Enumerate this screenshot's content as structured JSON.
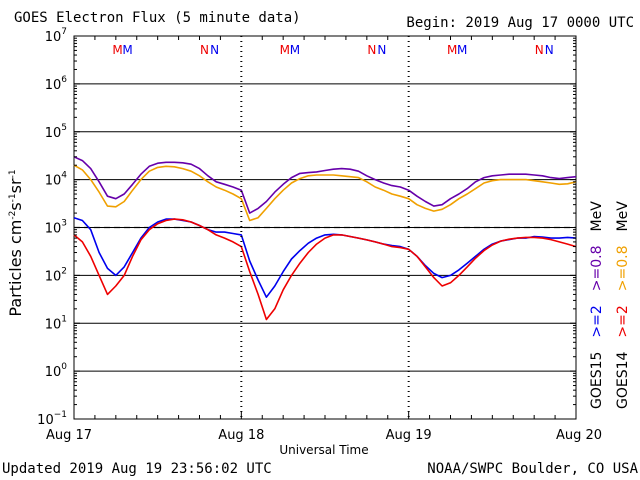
{
  "header": {
    "title": "GOES Electron Flux (5 minute data)",
    "begin": "Begin: 2019 Aug 17 0000 UTC"
  },
  "footer": {
    "updated": "Updated 2019 Aug 19 23:56:02 UTC",
    "source": "NOAA/SWPC Boulder, CO USA"
  },
  "colors": {
    "e2_goes15": "#0000ee",
    "e2_goes14": "#ee0000",
    "e08_goes15": "#6600aa",
    "e08_goes14": "#f0a000",
    "grid": "#000000"
  },
  "chart_data": {
    "type": "line",
    "title": "GOES Electron Flux (5 minute data)",
    "xlabel": "Universal Time",
    "ylabel": "Particles cm-2s-1sr-1",
    "yscale": "log",
    "ylim_exp": [
      -1,
      7
    ],
    "y_tick_exponents": [
      7,
      6,
      5,
      4,
      3,
      2,
      1,
      0,
      -1
    ],
    "x_unit": "day",
    "xlim": [
      0,
      3
    ],
    "x_tick_labels": [
      {
        "x": 0,
        "label": "Aug 17"
      },
      {
        "x": 1,
        "label": "Aug 18"
      },
      {
        "x": 2,
        "label": "Aug 19"
      },
      {
        "x": 3,
        "label": "Aug 20"
      }
    ],
    "threshold": {
      "value": 1000,
      "style": "dashed"
    },
    "noon_midnight_markers": [
      {
        "x": 0.26,
        "label": "M",
        "series": "GOES14"
      },
      {
        "x": 0.32,
        "label": "M",
        "series": "GOES15"
      },
      {
        "x": 0.78,
        "label": "N",
        "series": "GOES14"
      },
      {
        "x": 0.84,
        "label": "N",
        "series": "GOES15"
      },
      {
        "x": 1.26,
        "label": "M",
        "series": "GOES14"
      },
      {
        "x": 1.32,
        "label": "M",
        "series": "GOES15"
      },
      {
        "x": 1.78,
        "label": "N",
        "series": "GOES14"
      },
      {
        "x": 1.84,
        "label": "N",
        "series": "GOES15"
      },
      {
        "x": 2.26,
        "label": "M",
        "series": "GOES14"
      },
      {
        "x": 2.32,
        "label": "M",
        "series": "GOES15"
      },
      {
        "x": 2.78,
        "label": "N",
        "series": "GOES14"
      },
      {
        "x": 2.84,
        "label": "N",
        "series": "GOES15"
      }
    ],
    "right_labels": [
      {
        "text": "GOES15",
        "color": "#000000"
      },
      {
        "text": ">=2",
        "color": "#0000ee"
      },
      {
        "text": ">=0.8",
        "color": "#6600aa"
      },
      {
        "text": "MeV",
        "color": "#000000"
      },
      {
        "text": "GOES14",
        "color": "#000000"
      },
      {
        "text": ">=2",
        "color": "#ee0000"
      },
      {
        "text": ">=0.8",
        "color": "#f0a000"
      },
      {
        "text": "MeV",
        "color": "#000000"
      }
    ],
    "series": [
      {
        "color": "#6600aa",
        "x": [
          0,
          0.05,
          0.1,
          0.15,
          0.2,
          0.25,
          0.3,
          0.35,
          0.4,
          0.45,
          0.5,
          0.55,
          0.6,
          0.65,
          0.7,
          0.75,
          0.8,
          0.85,
          0.9,
          0.95,
          1.0,
          1.05,
          1.1,
          1.15,
          1.2,
          1.25,
          1.3,
          1.35,
          1.4,
          1.45,
          1.5,
          1.55,
          1.6,
          1.65,
          1.7,
          1.75,
          1.8,
          1.85,
          1.9,
          1.95,
          2.0,
          2.05,
          2.1,
          2.15,
          2.2,
          2.25,
          2.3,
          2.35,
          2.4,
          2.45,
          2.5,
          2.55,
          2.6,
          2.65,
          2.7,
          2.75,
          2.8,
          2.85,
          2.9,
          2.95,
          3.0
        ],
        "values": [
          30000,
          25000,
          17000,
          9000,
          4500,
          4000,
          5000,
          8000,
          13000,
          19000,
          22000,
          23000,
          23000,
          22500,
          21000,
          17000,
          12000,
          9000,
          8000,
          7000,
          6000,
          2000,
          2500,
          3500,
          5500,
          8000,
          11000,
          13500,
          14000,
          14500,
          15500,
          16500,
          17000,
          16500,
          15000,
          12000,
          10000,
          8500,
          7500,
          7000,
          6000,
          4500,
          3500,
          2800,
          3000,
          4000,
          5000,
          6500,
          9000,
          11000,
          12000,
          12500,
          13000,
          13000,
          13000,
          12500,
          12000,
          11000,
          10500,
          11000,
          11500
        ]
      },
      {
        "color": "#f0a000",
        "x": [
          0,
          0.05,
          0.1,
          0.15,
          0.2,
          0.25,
          0.3,
          0.35,
          0.4,
          0.45,
          0.5,
          0.55,
          0.6,
          0.65,
          0.7,
          0.75,
          0.8,
          0.85,
          0.9,
          0.95,
          1.0,
          1.05,
          1.1,
          1.15,
          1.2,
          1.25,
          1.3,
          1.35,
          1.4,
          1.45,
          1.5,
          1.55,
          1.6,
          1.65,
          1.7,
          1.75,
          1.8,
          1.85,
          1.9,
          1.95,
          2.0,
          2.05,
          2.1,
          2.15,
          2.2,
          2.25,
          2.3,
          2.35,
          2.4,
          2.45,
          2.5,
          2.55,
          2.6,
          2.65,
          2.7,
          2.75,
          2.8,
          2.85,
          2.9,
          2.95,
          3.0
        ],
        "values": [
          20000,
          16000,
          10000,
          5500,
          2800,
          2700,
          3500,
          6000,
          10000,
          15000,
          18000,
          19000,
          18500,
          17000,
          15000,
          12000,
          9000,
          7000,
          6000,
          5000,
          4000,
          1400,
          1600,
          2500,
          4000,
          6000,
          8500,
          10500,
          12000,
          12500,
          12500,
          12500,
          12000,
          11500,
          11000,
          9000,
          7000,
          6000,
          5000,
          4500,
          4000,
          3000,
          2500,
          2200,
          2400,
          3000,
          4000,
          5000,
          6500,
          8500,
          9500,
          10000,
          10000,
          10000,
          10000,
          9500,
          9000,
          8500,
          8000,
          8200,
          9000
        ]
      },
      {
        "color": "#0000ee",
        "x": [
          0,
          0.05,
          0.1,
          0.15,
          0.2,
          0.25,
          0.3,
          0.35,
          0.4,
          0.45,
          0.5,
          0.55,
          0.6,
          0.65,
          0.7,
          0.75,
          0.8,
          0.85,
          0.9,
          0.95,
          1.0,
          1.05,
          1.1,
          1.15,
          1.2,
          1.25,
          1.3,
          1.35,
          1.4,
          1.45,
          1.5,
          1.55,
          1.6,
          1.65,
          1.7,
          1.75,
          1.8,
          1.85,
          1.9,
          1.95,
          2.0,
          2.05,
          2.1,
          2.15,
          2.2,
          2.25,
          2.3,
          2.35,
          2.4,
          2.45,
          2.5,
          2.55,
          2.6,
          2.65,
          2.7,
          2.75,
          2.8,
          2.85,
          2.9,
          2.95,
          3.0
        ],
        "values": [
          1600,
          1400,
          900,
          300,
          140,
          100,
          150,
          300,
          600,
          1000,
          1300,
          1500,
          1500,
          1400,
          1300,
          1100,
          900,
          800,
          800,
          750,
          700,
          200,
          80,
          35,
          60,
          120,
          220,
          330,
          470,
          600,
          700,
          720,
          700,
          650,
          600,
          550,
          500,
          450,
          420,
          400,
          350,
          250,
          160,
          110,
          90,
          100,
          130,
          180,
          250,
          350,
          450,
          520,
          560,
          600,
          600,
          650,
          630,
          600,
          600,
          620,
          600
        ]
      },
      {
        "color": "#ee0000",
        "x": [
          0,
          0.05,
          0.1,
          0.15,
          0.2,
          0.25,
          0.3,
          0.35,
          0.4,
          0.45,
          0.5,
          0.55,
          0.6,
          0.65,
          0.7,
          0.75,
          0.8,
          0.85,
          0.9,
          0.95,
          1.0,
          1.05,
          1.1,
          1.15,
          1.2,
          1.25,
          1.3,
          1.35,
          1.4,
          1.45,
          1.5,
          1.55,
          1.6,
          1.65,
          1.7,
          1.75,
          1.8,
          1.85,
          1.9,
          1.95,
          2.0,
          2.05,
          2.1,
          2.15,
          2.2,
          2.25,
          2.3,
          2.35,
          2.4,
          2.45,
          2.5,
          2.55,
          2.6,
          2.65,
          2.7,
          2.75,
          2.8,
          2.85,
          2.9,
          2.95,
          3.0
        ],
        "values": [
          700,
          500,
          250,
          100,
          40,
          60,
          100,
          250,
          550,
          900,
          1200,
          1400,
          1500,
          1450,
          1300,
          1100,
          900,
          700,
          600,
          500,
          400,
          120,
          40,
          12,
          20,
          50,
          100,
          180,
          300,
          450,
          600,
          700,
          700,
          650,
          600,
          550,
          500,
          450,
          400,
          380,
          350,
          250,
          150,
          90,
          60,
          70,
          100,
          150,
          230,
          330,
          430,
          520,
          570,
          600,
          620,
          620,
          600,
          560,
          500,
          450,
          400
        ]
      }
    ]
  }
}
